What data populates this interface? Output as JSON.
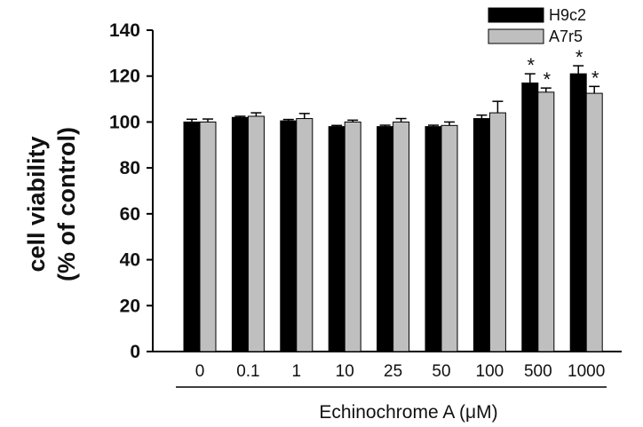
{
  "chart_data": {
    "type": "bar",
    "title": "",
    "ylabel_lines": [
      "cell viability",
      "(% of control)"
    ],
    "xlabel": "Echinochrome  A (μM)",
    "ylim": [
      0,
      140
    ],
    "yticks": [
      0,
      20,
      40,
      60,
      80,
      100,
      120,
      140
    ],
    "categories": [
      "0",
      "0.1",
      "1",
      "10",
      "25",
      "50",
      "100",
      "500",
      "1000"
    ],
    "series": [
      {
        "name": "H9c2",
        "color": "#000000",
        "values": [
          100,
          102,
          100.5,
          98,
          98,
          98,
          101.5,
          117,
          121
        ],
        "errors": [
          1.2,
          0.5,
          0.6,
          0.5,
          0.6,
          0.6,
          1.5,
          4,
          3.5
        ],
        "significant": [
          false,
          false,
          false,
          false,
          false,
          false,
          false,
          true,
          true
        ]
      },
      {
        "name": "A7r5",
        "color": "#bfbfbf",
        "values": [
          100,
          102.5,
          101.5,
          100,
          100,
          98.5,
          104,
          113,
          112.5
        ],
        "errors": [
          1.3,
          1.5,
          2.2,
          0.8,
          1.5,
          1.5,
          5,
          1.8,
          3
        ],
        "significant": [
          false,
          false,
          false,
          false,
          false,
          false,
          false,
          true,
          true
        ]
      }
    ],
    "significance_marker": "*",
    "legend_position": "top-right",
    "grid": false
  }
}
